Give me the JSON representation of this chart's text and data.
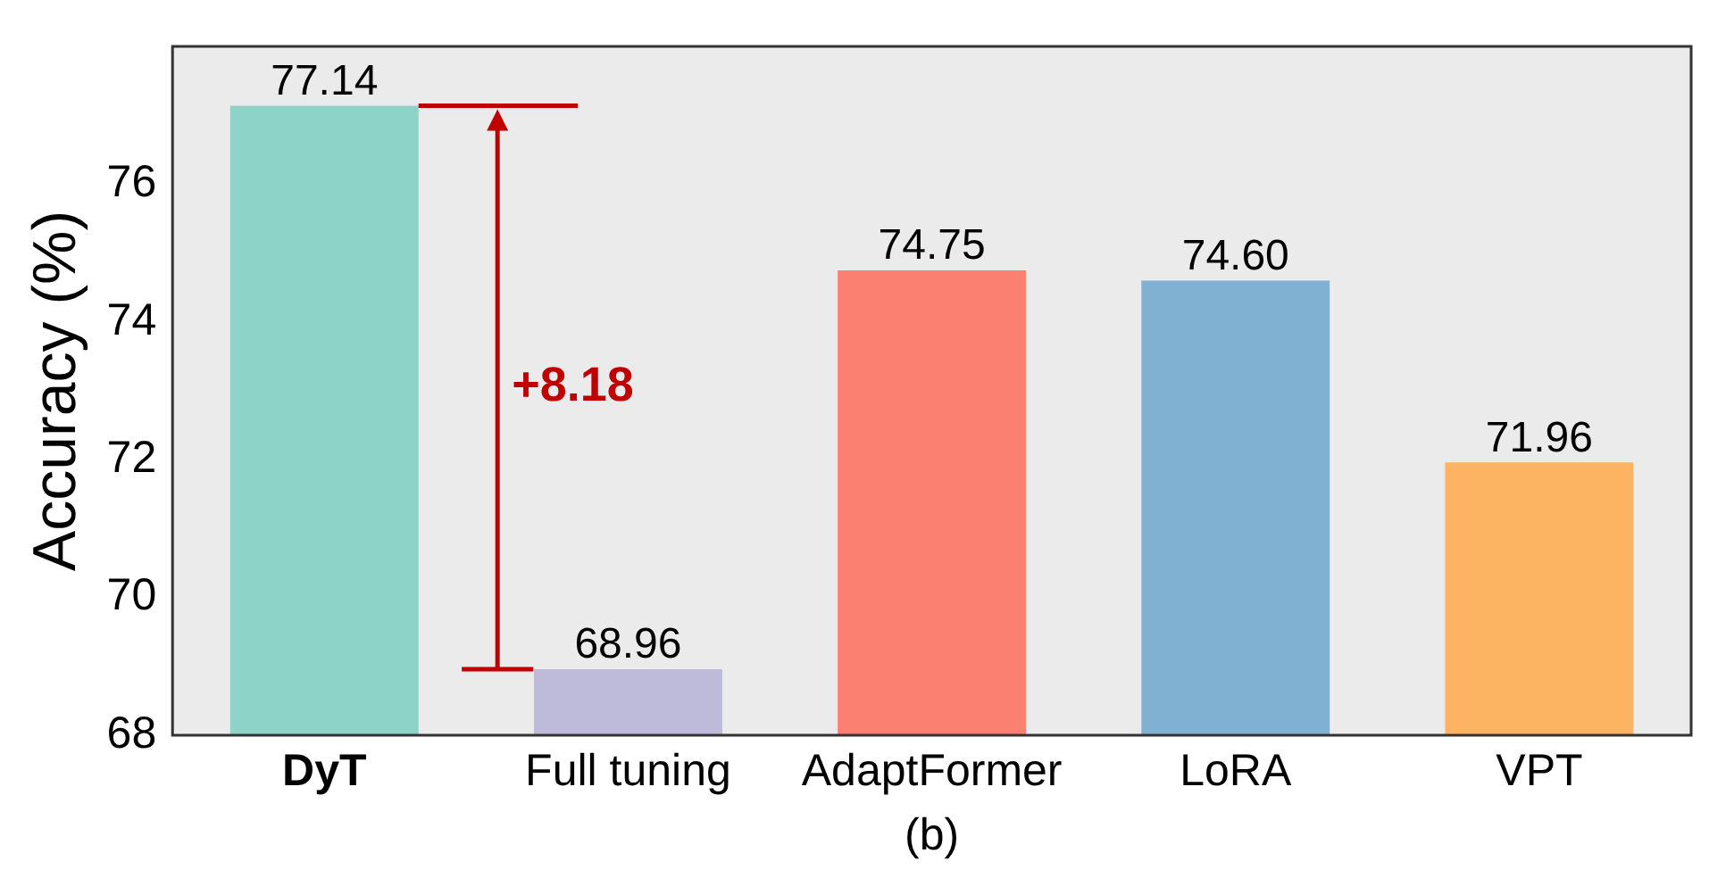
{
  "chart_data": {
    "type": "bar",
    "xlabel": "(b)",
    "ylabel": "Accuracy (%)",
    "categories": [
      "DyT",
      "Full tuning",
      "AdaptFormer",
      "LoRA",
      "VPT"
    ],
    "values": [
      77.14,
      68.96,
      74.75,
      74.6,
      71.96
    ],
    "colors": [
      "#8dd3c7",
      "#bebada",
      "#fb8072",
      "#80b1d3",
      "#fdb462"
    ],
    "ylim": [
      68,
      78
    ],
    "yticks": [
      68,
      70,
      72,
      74,
      76
    ],
    "grid": false,
    "legend": false,
    "value_labels": [
      "77.14",
      "68.96",
      "74.75",
      "74.60",
      "71.96"
    ],
    "annotations": [
      "+8.18"
    ]
  }
}
